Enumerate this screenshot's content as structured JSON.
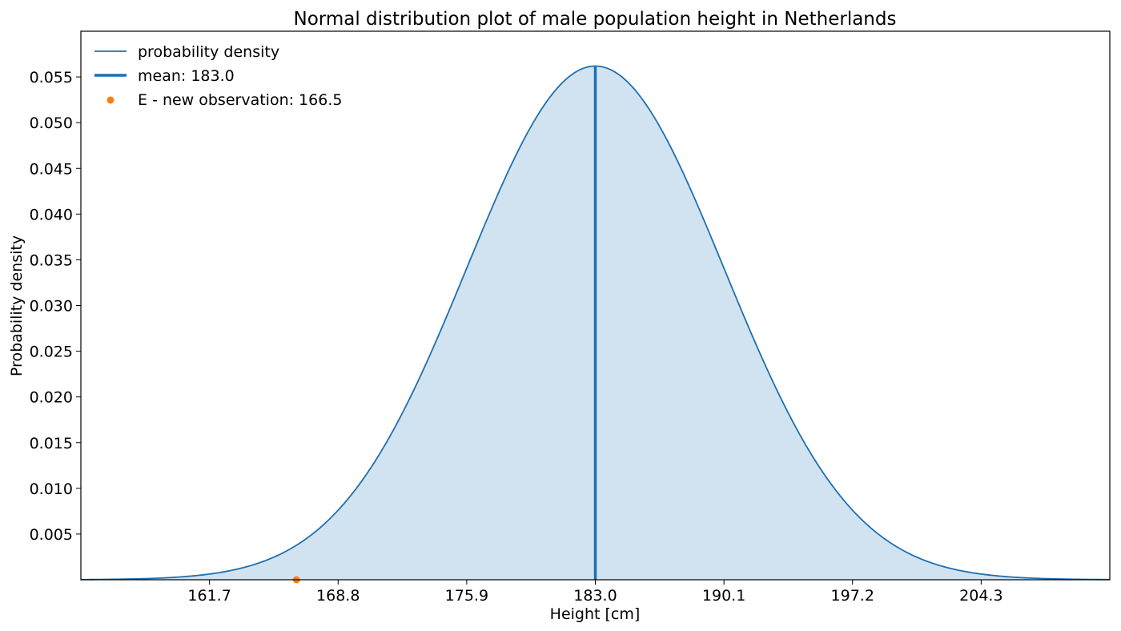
{
  "chart_data": {
    "type": "line",
    "title": "Normal distribution plot of male population height in Netherlands",
    "xlabel": "Height [cm]",
    "ylabel": "Probability density",
    "distribution": {
      "mean": 183.0,
      "std": 7.1
    },
    "xlim": [
      154.6,
      211.4
    ],
    "ylim": [
      0,
      0.06
    ],
    "xticks": [
      161.7,
      168.8,
      175.9,
      183.0,
      190.1,
      197.2,
      204.3
    ],
    "xtick_labels": [
      "161.7",
      "168.8",
      "175.9",
      "183.0",
      "190.1",
      "197.2",
      "204.3"
    ],
    "yticks": [
      0.005,
      0.01,
      0.015,
      0.02,
      0.025,
      0.03,
      0.035,
      0.04,
      0.045,
      0.05,
      0.055
    ],
    "ytick_labels": [
      "0.005",
      "0.010",
      "0.015",
      "0.020",
      "0.025",
      "0.030",
      "0.035",
      "0.040",
      "0.045",
      "0.050",
      "0.055"
    ],
    "series": [
      {
        "name": "probability density",
        "kind": "curve"
      },
      {
        "name": "mean: 183.0",
        "kind": "vline",
        "x": 183.0
      },
      {
        "name": "E - new observation: 166.5",
        "kind": "point",
        "x": 166.5,
        "y": 0
      }
    ],
    "legend": {
      "placement": "top-left"
    },
    "grid": false,
    "colors": {
      "curve": "#1f6fb0",
      "fill": "#d1e3f0",
      "observation": "#ff7f0e"
    }
  }
}
